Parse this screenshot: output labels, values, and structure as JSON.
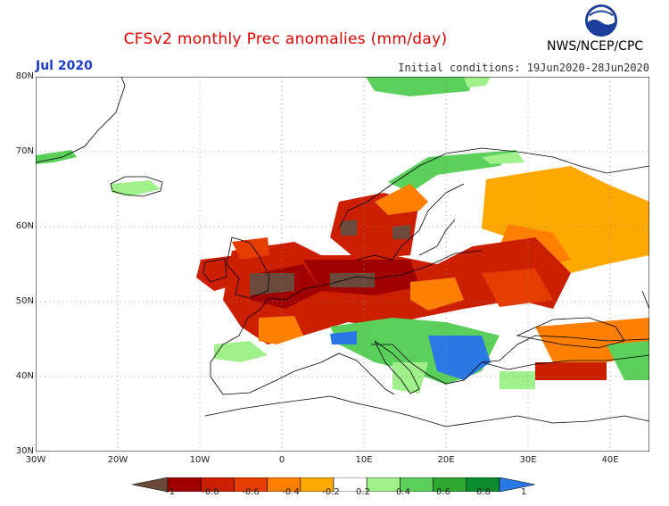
{
  "header": {
    "title": "CFSv2 monthly Prec anomalies (mm/day)",
    "month": "Jul 2020",
    "initial_conditions": "Initial conditions: 19Jun2020-28Jun2020",
    "agency": "NWS/NCEP/CPC",
    "logo_text": "NOAA"
  },
  "axes": {
    "lat_labels": [
      "80N",
      "70N",
      "60N",
      "50N",
      "40N",
      "30N"
    ],
    "lon_labels": [
      "30W",
      "20W",
      "10W",
      "0",
      "10E",
      "20E",
      "30E",
      "40E"
    ],
    "lon_range": [
      -30,
      45
    ],
    "lat_range": [
      30,
      80
    ],
    "grid": true
  },
  "legend": {
    "labels": [
      "-1",
      "-0.8",
      "-0.6",
      "-0.4",
      "-0.2",
      "0.2",
      "0.4",
      "0.6",
      "0.8",
      "1"
    ],
    "colors": [
      "#6b4a3c",
      "#a00000",
      "#cc1f00",
      "#e63c00",
      "#ff7f00",
      "#ffa800",
      "#ffffff",
      "#a0f08c",
      "#5ad05a",
      "#2ea82e",
      "#0a8c2e",
      "#2a78e6"
    ]
  },
  "colors": {
    "title": "#e00000",
    "month": "#1a3cc8",
    "coast": "#000000",
    "grid": "#888888"
  }
}
